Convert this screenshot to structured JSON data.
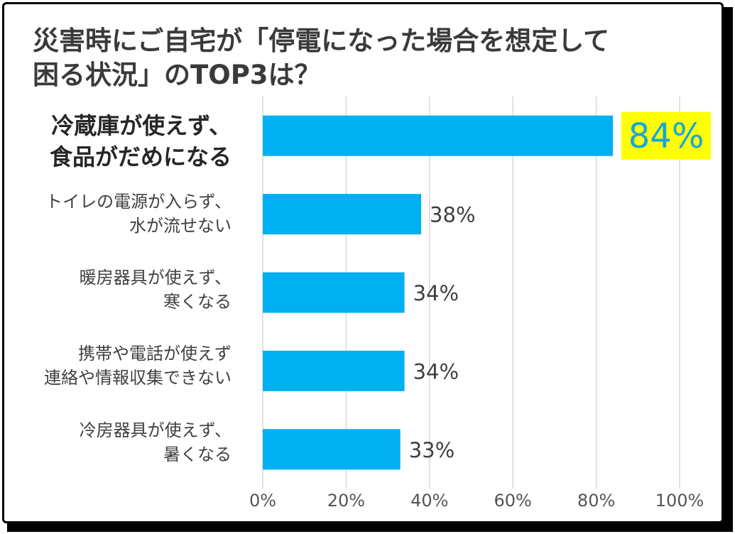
{
  "chart_data": {
    "type": "bar",
    "orientation": "horizontal",
    "title": "災害時にご自宅が「停電になった場合を想定して困る状況」のTOP3は？",
    "title_lines": [
      "災害時にご自宅が「停電になった場合を想定して",
      "困る状況」のTOP3は？"
    ],
    "categories": [
      [
        "冷蔵庫が使えず、",
        "食品がだめになる"
      ],
      [
        "トイレの電源が入らず、",
        "水が流せない"
      ],
      [
        "暖房器具が使えず、",
        "寒くなる"
      ],
      [
        "携帯や電話が使えず",
        "連絡や情報収集できない"
      ],
      [
        "冷房器具が使えず、",
        "暑くなる"
      ]
    ],
    "values": [
      84,
      38,
      34,
      34,
      33
    ],
    "value_labels": [
      "84%",
      "38%",
      "34%",
      "34%",
      "33%"
    ],
    "highlight_index": 0,
    "xlim": [
      0,
      100
    ],
    "xticks": [
      0,
      20,
      40,
      60,
      80,
      100
    ],
    "xtick_labels": [
      "0%",
      "20%",
      "40%",
      "60%",
      "80%",
      "100%"
    ],
    "xlabel": "",
    "ylabel": "",
    "grid": true,
    "colors": {
      "bar": "#00b0f0",
      "highlight_bg": "#ffff00",
      "highlight_text": "#16a6e0",
      "grid": "#d9d9d9"
    }
  }
}
